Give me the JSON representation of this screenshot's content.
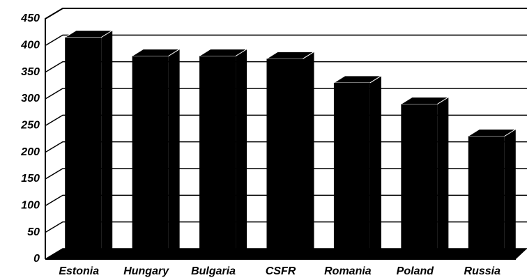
{
  "chart_data": {
    "type": "bar3d",
    "categories": [
      "Estonia",
      "Hungary",
      "Bulgaria",
      "CSFR",
      "Romania",
      "Poland",
      "Russia"
    ],
    "values": [
      410,
      375,
      375,
      370,
      325,
      285,
      225
    ],
    "color": "#000000",
    "ylim": [
      0,
      450
    ],
    "yticks": [
      0,
      50,
      100,
      150,
      200,
      250,
      300,
      350,
      400,
      450
    ],
    "grid": true
  }
}
